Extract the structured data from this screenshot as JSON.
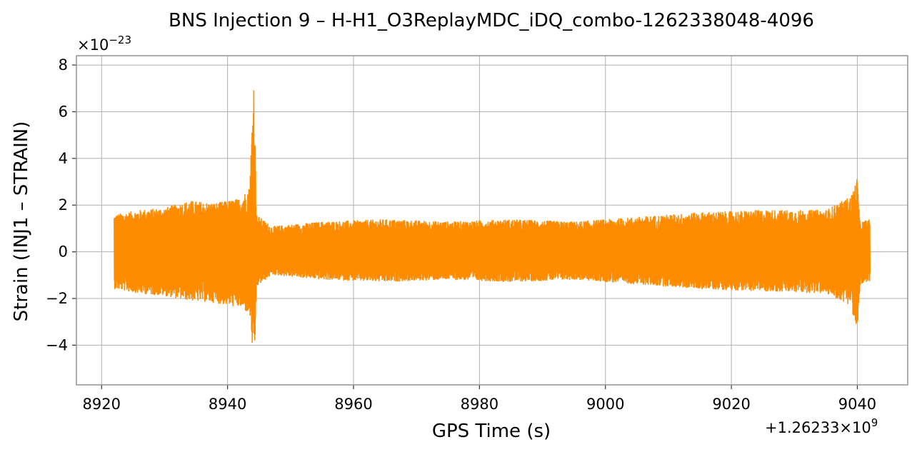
{
  "chart_data": {
    "type": "line",
    "title": "BNS Injection 9 – H-H1_O3ReplayMDC_iDQ_combo-1262338048-4096",
    "xlabel": "GPS Time (s)",
    "ylabel": "Strain (INJ1 – STRAIN)",
    "x_offset_label": "+1.26233×10",
    "x_offset_exp": "9",
    "y_multiplier_label": "×10",
    "y_multiplier_exp": "−23",
    "xlim": [
      8916,
      9048
    ],
    "ylim": [
      -5.7,
      8.4
    ],
    "x_ticks": [
      8920,
      8940,
      8960,
      8980,
      9000,
      9020,
      9040
    ],
    "x_tick_labels": [
      "8920",
      "8940",
      "8960",
      "8980",
      "9000",
      "9020",
      "9040"
    ],
    "y_ticks": [
      -4,
      -2,
      0,
      2,
      4,
      6,
      8
    ],
    "y_tick_labels": [
      "−4",
      "−2",
      "0",
      "2",
      "4",
      "6",
      "8"
    ],
    "grid": true,
    "series": [
      {
        "color": "#ff8c00",
        "x_start": 8922,
        "x_end": 9042,
        "envelope_x": [
          8922,
          8926,
          8930,
          8934,
          8938,
          8942,
          8943.5,
          8944.2,
          8944.6,
          8947,
          8955,
          8965,
          8975,
          8985,
          8995,
          9005,
          9015,
          9025,
          9035,
          9039,
          9040.0,
          9040.4,
          9042
        ],
        "envelope_upper": [
          1.6,
          1.8,
          1.9,
          2.2,
          2.1,
          2.3,
          2.8,
          7.7,
          1.6,
          1.1,
          1.3,
          1.4,
          1.3,
          1.4,
          1.3,
          1.5,
          1.7,
          1.8,
          1.8,
          2.4,
          3.2,
          1.3,
          1.4
        ],
        "envelope_lower": [
          -1.6,
          -1.8,
          -1.9,
          -2.1,
          -2.2,
          -2.4,
          -2.7,
          -5.1,
          -1.5,
          -1.0,
          -1.2,
          -1.3,
          -1.2,
          -1.3,
          -1.2,
          -1.4,
          -1.6,
          -1.7,
          -1.8,
          -2.3,
          -3.7,
          -1.4,
          -1.4
        ]
      }
    ]
  }
}
